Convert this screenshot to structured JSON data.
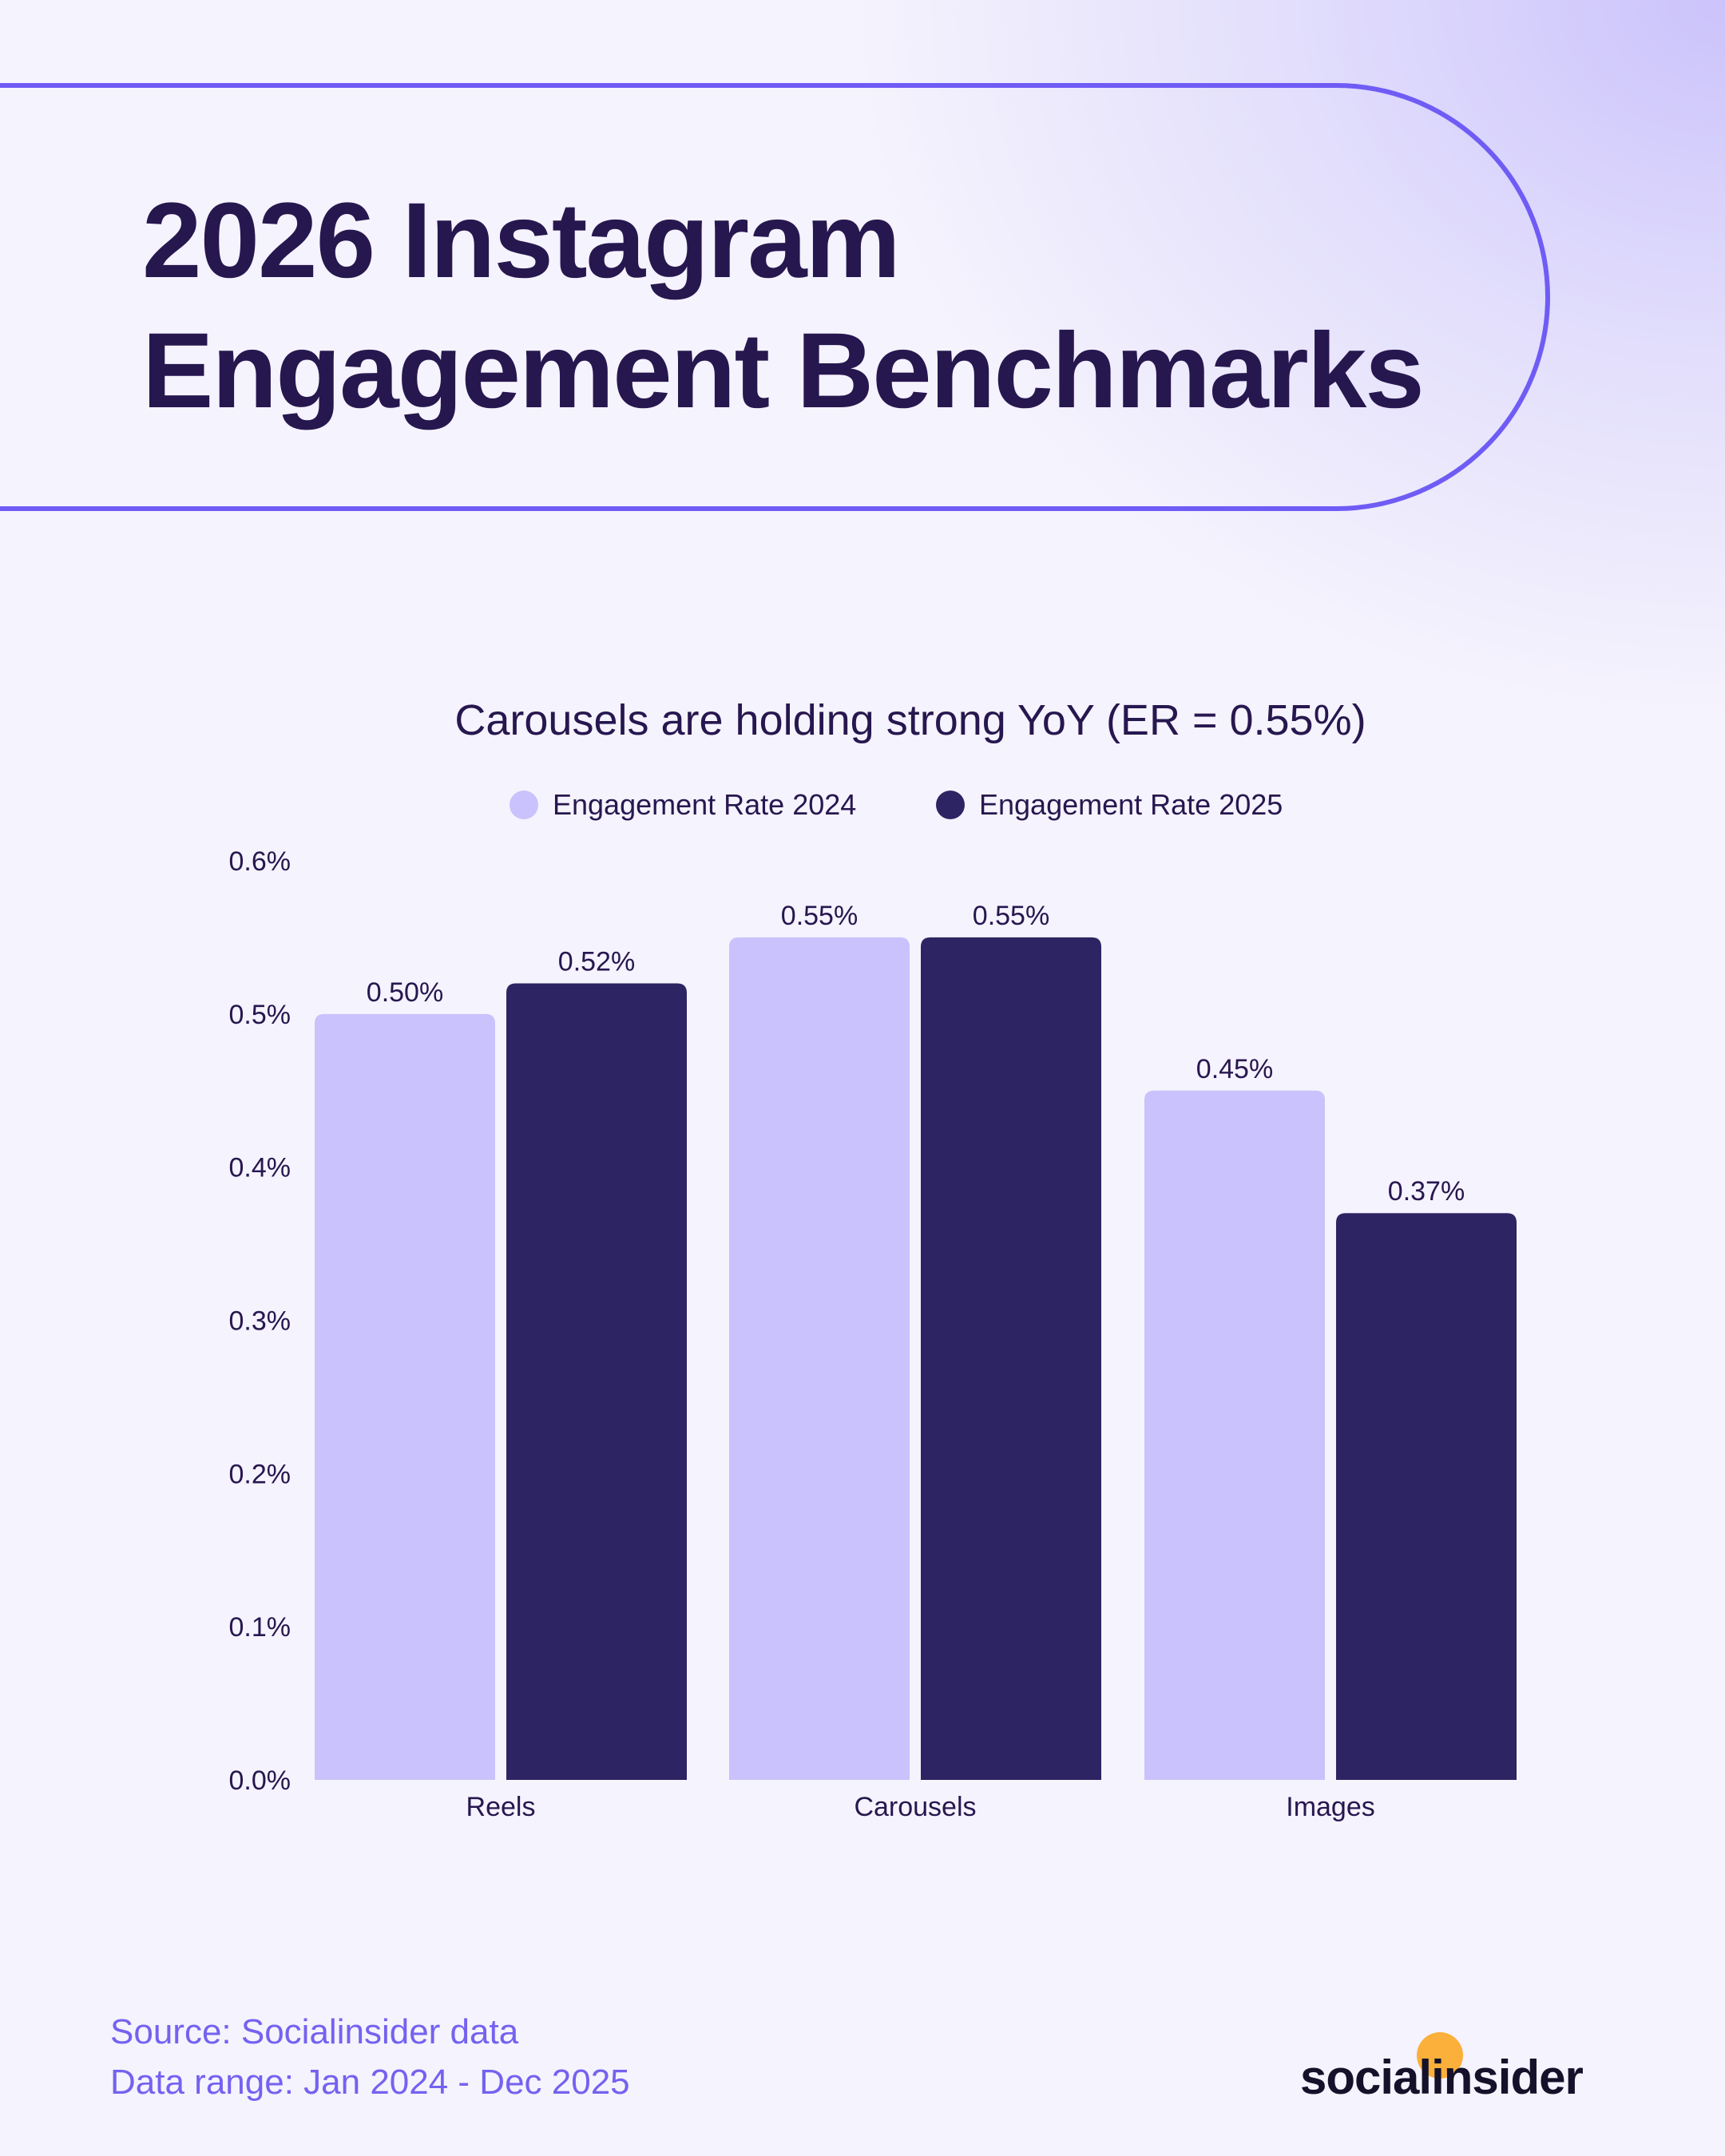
{
  "header": {
    "title_line1": "2026 Instagram",
    "title_line2": "Engagement Benchmarks"
  },
  "colors": {
    "series_2024": "#c9c2fc",
    "series_2025": "#2d2463",
    "accent": "#6f5cf5",
    "text": "#27174f",
    "logo_dot": "#fbb03b"
  },
  "chart_data": {
    "type": "bar",
    "title": "Carousels are holding strong YoY (ER = 0.55%)",
    "categories": [
      "Reels",
      "Carousels",
      "Images"
    ],
    "series": [
      {
        "name": "Engagement Rate 2024",
        "values": [
          0.5,
          0.55,
          0.45
        ],
        "labels": [
          "0.50%",
          "0.55%",
          "0.45%"
        ]
      },
      {
        "name": "Engagement Rate 2025",
        "values": [
          0.52,
          0.55,
          0.37
        ],
        "labels": [
          "0.52%",
          "0.55%",
          "0.37%"
        ]
      }
    ],
    "ylim": [
      0,
      0.6
    ],
    "yticks": [
      "0.0%",
      "0.1%",
      "0.2%",
      "0.3%",
      "0.4%",
      "0.5%",
      "0.6%"
    ],
    "grid": false,
    "legend": "top-center"
  },
  "footer": {
    "source": "Source: Socialinsider data",
    "range": "Data range: Jan 2024 - Dec 2025",
    "logo": "socialinsider"
  }
}
